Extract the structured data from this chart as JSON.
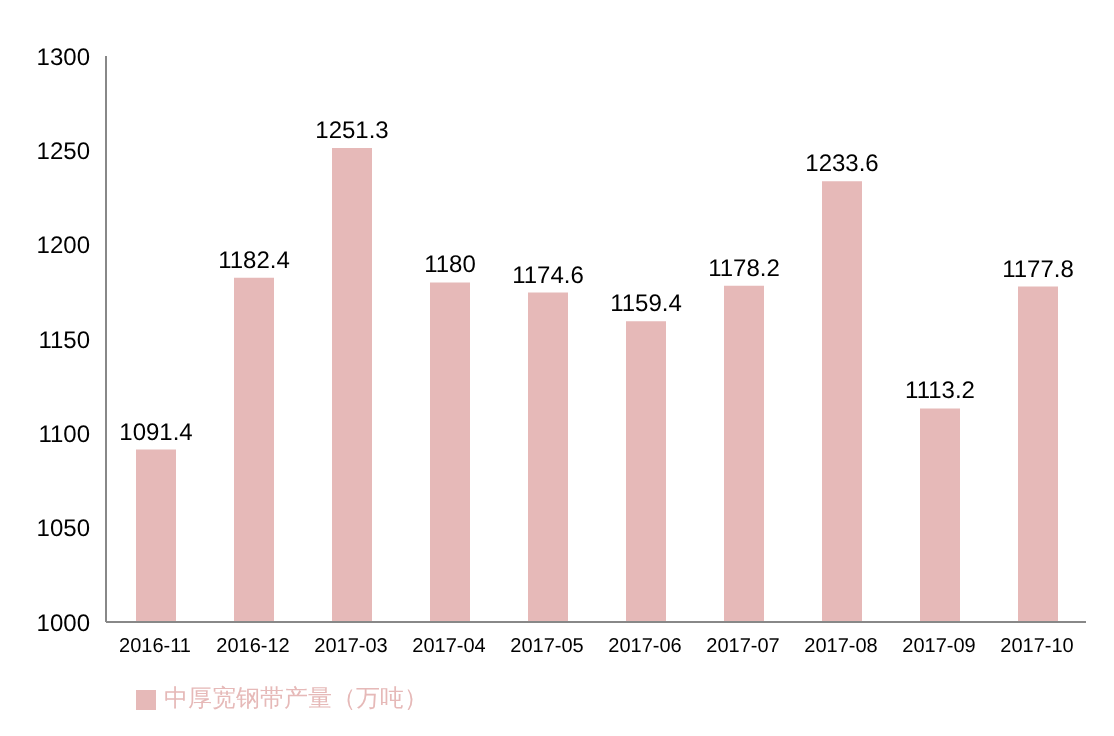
{
  "chart_data": {
    "type": "bar",
    "categories": [
      "2016-11",
      "2016-12",
      "2017-03",
      "2017-04",
      "2017-05",
      "2017-06",
      "2017-07",
      "2017-08",
      "2017-09",
      "2017-10"
    ],
    "series": [
      {
        "name": "中厚宽钢带产量（万吨）",
        "color": "#e6b9b8",
        "values": [
          1091.4,
          1182.4,
          1251.3,
          1180,
          1174.6,
          1159.4,
          1178.2,
          1233.6,
          1113.2,
          1177.8
        ]
      }
    ],
    "ylim": [
      1000,
      1300
    ],
    "yticks": [
      1000,
      1050,
      1100,
      1150,
      1200,
      1250,
      1300
    ],
    "grid": false,
    "legend": "bottom",
    "data_labels": true
  }
}
